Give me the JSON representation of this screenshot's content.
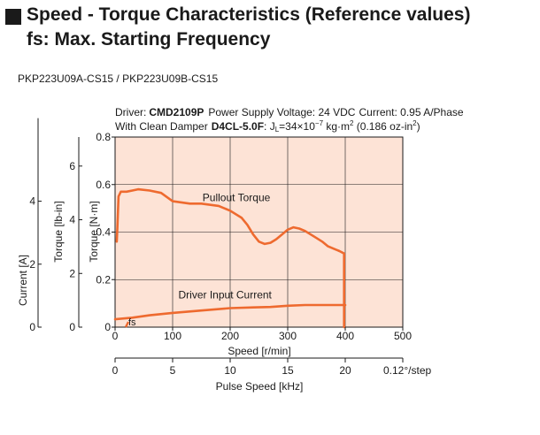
{
  "header": {
    "title_line1": "Speed - Torque Characteristics (Reference values)",
    "title_line2": "fs: Max. Starting Frequency",
    "model": "PKP223U09A-CS15 / PKP223U09B-CS15"
  },
  "conditions": {
    "driver_label": "Driver:",
    "driver": "CMD2109P",
    "power_label": "Power Supply Voltage: 24 VDC",
    "current_label": "Current: 0.95 A/Phase",
    "damper_label": "With Clean Damper",
    "damper": "D4CL-5.0F",
    "inertia_label": ": J",
    "inertia_sub": "L",
    "inertia_value": "=34×10",
    "inertia_exp": "−7",
    "inertia_unit": " kg·m",
    "inertia_unit_exp": "2",
    "inertia_oz": " (0.186 oz-in",
    "inertia_oz_exp": "2",
    "inertia_close": ")"
  },
  "colors": {
    "plot_bg": "#fde3d6",
    "curve": "#ee6a2f",
    "axis": "#1a1a1a"
  },
  "chart_data": {
    "type": "line",
    "xlabel": "Speed [r/min]",
    "x2label": "Pulse Speed [kHz]",
    "ylabel": "Torque [N·m]",
    "y2label": "Torque [lb-in]",
    "y3label": "Current [A]",
    "xlim": [
      0,
      500
    ],
    "x_ticks": [
      "0",
      "100",
      "200",
      "300",
      "400",
      "500"
    ],
    "x2_ticks": [
      "0",
      "5",
      "10",
      "15",
      "20"
    ],
    "x2_tick_extra": "0.12",
    "x2_tick_extra_suffix": "/step",
    "ylim": [
      0,
      0.8
    ],
    "y_ticks": [
      "0",
      "0.2",
      "0.4",
      "0.6",
      "0.8"
    ],
    "y2_ticks": [
      "0",
      "2",
      "4",
      "6"
    ],
    "y3_ticks": [
      "0",
      "2",
      "4"
    ],
    "grid": true,
    "series": [
      {
        "name": "Pullout Torque",
        "x": [
          3,
          4,
          6,
          10,
          20,
          30,
          40,
          60,
          80,
          100,
          130,
          150,
          180,
          200,
          220,
          230,
          240,
          250,
          260,
          270,
          280,
          290,
          300,
          310,
          320,
          330,
          340,
          350,
          360,
          370,
          380,
          390,
          398,
          398
        ],
        "values": [
          0.36,
          0.42,
          0.55,
          0.57,
          0.57,
          0.575,
          0.58,
          0.575,
          0.565,
          0.53,
          0.52,
          0.52,
          0.51,
          0.49,
          0.46,
          0.43,
          0.39,
          0.36,
          0.35,
          0.355,
          0.37,
          0.39,
          0.41,
          0.42,
          0.415,
          0.405,
          0.39,
          0.375,
          0.36,
          0.34,
          0.33,
          0.32,
          0.31,
          0.0
        ]
      },
      {
        "name": "Driver Input Current",
        "x": [
          0,
          30,
          60,
          100,
          150,
          200,
          240,
          270,
          300,
          330,
          400
        ],
        "values": [
          0.033,
          0.04,
          0.05,
          0.06,
          0.07,
          0.08,
          0.083,
          0.085,
          0.09,
          0.093,
          0.093
        ]
      }
    ],
    "annotations": [
      {
        "text": "Pullout Torque",
        "target": "series-0"
      },
      {
        "text": "Driver Input Current",
        "target": "series-1"
      },
      {
        "text": "fs",
        "x": 20,
        "y": 0.0
      }
    ]
  }
}
